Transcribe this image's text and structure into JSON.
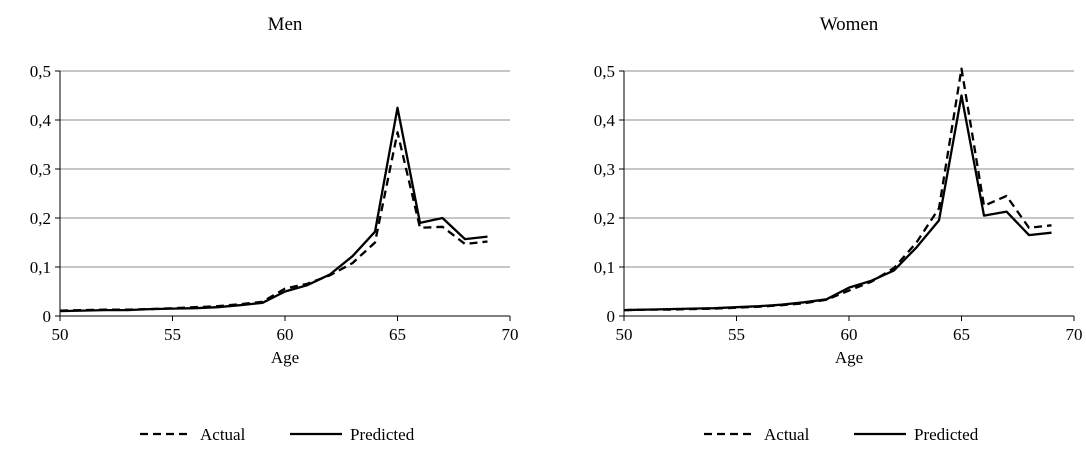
{
  "chart_data": [
    {
      "type": "line",
      "title": "Men",
      "xlabel": "Age",
      "ylabel": "",
      "xlim": [
        50,
        70
      ],
      "ylim": [
        0,
        0.5
      ],
      "xticks": [
        50,
        55,
        60,
        65,
        70
      ],
      "xtick_labels": [
        "50",
        "55",
        "60",
        "65",
        "70"
      ],
      "yticks": [
        0,
        0.1,
        0.2,
        0.3,
        0.4,
        0.5
      ],
      "ytick_labels": [
        "0",
        "0,1",
        "0,2",
        "0,3",
        "0,4",
        "0,5"
      ],
      "grid": true,
      "legend_position": "bottom",
      "x": [
        50,
        51,
        52,
        53,
        54,
        55,
        56,
        57,
        58,
        59,
        60,
        61,
        62,
        63,
        64,
        65,
        66,
        67,
        68,
        69
      ],
      "series": [
        {
          "name": "Actual",
          "style": "dashed",
          "values": [
            0.011,
            0.012,
            0.013,
            0.013,
            0.014,
            0.016,
            0.018,
            0.02,
            0.024,
            0.029,
            0.056,
            0.066,
            0.083,
            0.108,
            0.15,
            0.375,
            0.18,
            0.182,
            0.147,
            0.152
          ]
        },
        {
          "name": "Predicted",
          "style": "solid",
          "values": [
            0.01,
            0.011,
            0.012,
            0.012,
            0.014,
            0.015,
            0.016,
            0.018,
            0.022,
            0.027,
            0.05,
            0.063,
            0.085,
            0.122,
            0.172,
            0.425,
            0.19,
            0.2,
            0.157,
            0.162
          ]
        }
      ]
    },
    {
      "type": "line",
      "title": "Women",
      "xlabel": "Age",
      "ylabel": "",
      "xlim": [
        50,
        70
      ],
      "ylim": [
        0,
        0.5
      ],
      "xticks": [
        50,
        55,
        60,
        65,
        70
      ],
      "xtick_labels": [
        "50",
        "55",
        "60",
        "65",
        "70"
      ],
      "yticks": [
        0,
        0.1,
        0.2,
        0.3,
        0.4,
        0.5
      ],
      "ytick_labels": [
        "0",
        "0,1",
        "0,2",
        "0,3",
        "0,4",
        "0,5"
      ],
      "grid": true,
      "legend_position": "bottom",
      "x": [
        50,
        51,
        52,
        53,
        54,
        55,
        56,
        57,
        58,
        59,
        60,
        61,
        62,
        63,
        64,
        65,
        66,
        67,
        68,
        69
      ],
      "series": [
        {
          "name": "Actual",
          "style": "dashed",
          "values": [
            0.012,
            0.013,
            0.013,
            0.014,
            0.015,
            0.017,
            0.019,
            0.022,
            0.026,
            0.033,
            0.052,
            0.07,
            0.098,
            0.15,
            0.22,
            0.505,
            0.225,
            0.245,
            0.18,
            0.185
          ]
        },
        {
          "name": "Predicted",
          "style": "solid",
          "values": [
            0.012,
            0.013,
            0.014,
            0.015,
            0.016,
            0.018,
            0.02,
            0.023,
            0.028,
            0.034,
            0.058,
            0.072,
            0.093,
            0.14,
            0.195,
            0.45,
            0.205,
            0.213,
            0.165,
            0.17
          ]
        }
      ]
    }
  ]
}
